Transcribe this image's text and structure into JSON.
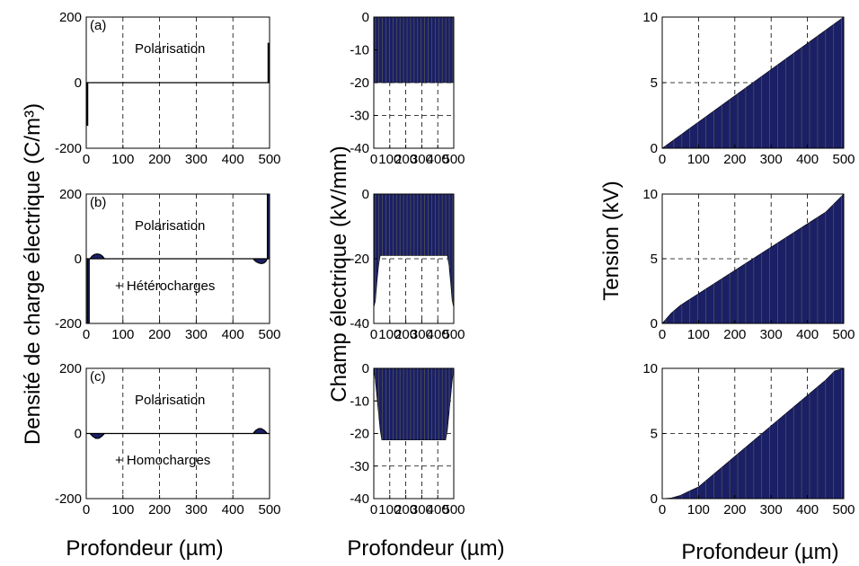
{
  "figure": {
    "ylabel_col1": "Densité de charge électrique (C/m³)",
    "ylabel_col2": "Champ électrique (kV/mm)",
    "ylabel_col3": "Tension (kV)",
    "xlabel": "Profondeur (µm)",
    "fill_color": "#1a1f66",
    "stripe_color": "#8a8a3a",
    "grid": "dashed"
  },
  "chart_data": [
    {
      "id": "a-charge",
      "type": "line",
      "panel_label": "(a)",
      "annotations": [
        "Polarisation"
      ],
      "xlim": [
        0,
        500
      ],
      "ylim": [
        -200,
        200
      ],
      "xticks": [
        0,
        100,
        200,
        300,
        400,
        500
      ],
      "yticks": [
        -200,
        0,
        200
      ],
      "x": [
        0,
        2,
        2,
        4,
        4,
        496,
        496,
        498,
        498,
        500
      ],
      "y": [
        0,
        0,
        -130,
        -130,
        0,
        0,
        120,
        120,
        0,
        0
      ]
    },
    {
      "id": "a-field",
      "type": "area",
      "xlim": [
        0,
        500
      ],
      "ylim": [
        -40,
        0
      ],
      "xticks": [
        0,
        100,
        200,
        300,
        400,
        500
      ],
      "yticks": [
        -40,
        -30,
        -20,
        -10,
        0
      ],
      "x": [
        0,
        500
      ],
      "y": [
        -20,
        -20
      ]
    },
    {
      "id": "a-voltage",
      "type": "area",
      "xlim": [
        0,
        500
      ],
      "ylim": [
        0,
        10
      ],
      "xticks": [
        0,
        100,
        200,
        300,
        400,
        500
      ],
      "yticks": [
        0,
        5,
        10
      ],
      "x": [
        0,
        500
      ],
      "y": [
        0,
        10
      ]
    },
    {
      "id": "b-charge",
      "type": "line",
      "panel_label": "(b)",
      "annotations": [
        "Polarisation",
        "+ Hétérocharges"
      ],
      "xlim": [
        0,
        500
      ],
      "ylim": [
        -200,
        200
      ],
      "xticks": [
        0,
        100,
        200,
        300,
        400,
        500
      ],
      "yticks": [
        -200,
        0,
        200
      ],
      "x": [
        0,
        3,
        3,
        8,
        8,
        10,
        16,
        22,
        30,
        38,
        44,
        50,
        455,
        462,
        470,
        478,
        485,
        490,
        494,
        494,
        500
      ],
      "y": [
        0,
        0,
        -200,
        -200,
        0,
        0,
        8,
        13,
        15,
        13,
        8,
        0,
        0,
        -8,
        -13,
        -15,
        -13,
        -8,
        0,
        200,
        200
      ]
    },
    {
      "id": "b-field",
      "type": "area",
      "xlim": [
        0,
        500
      ],
      "ylim": [
        -40,
        0
      ],
      "xticks": [
        0,
        100,
        200,
        300,
        400,
        500
      ],
      "yticks": [
        -40,
        -20,
        0
      ],
      "x": [
        0,
        10,
        20,
        30,
        40,
        50,
        450,
        460,
        470,
        480,
        490,
        500
      ],
      "y": [
        -35,
        -33,
        -27,
        -22,
        -19,
        -19,
        -19,
        -19,
        -22,
        -27,
        -33,
        -35
      ]
    },
    {
      "id": "b-voltage",
      "type": "area",
      "xlim": [
        0,
        500
      ],
      "ylim": [
        0,
        10
      ],
      "xticks": [
        0,
        100,
        200,
        300,
        400,
        500
      ],
      "yticks": [
        0,
        5,
        10
      ],
      "x": [
        0,
        25,
        50,
        100,
        450,
        475,
        500
      ],
      "y": [
        0,
        0.8,
        1.4,
        2.3,
        8.6,
        9.3,
        10
      ]
    },
    {
      "id": "c-charge",
      "type": "line",
      "panel_label": "(c)",
      "annotations": [
        "Polarisation",
        "+ Homocharges"
      ],
      "xlim": [
        0,
        500
      ],
      "ylim": [
        -200,
        200
      ],
      "xticks": [
        0,
        100,
        200,
        300,
        400,
        500
      ],
      "yticks": [
        -200,
        0,
        200
      ],
      "x": [
        0,
        10,
        18,
        26,
        34,
        42,
        50,
        455,
        462,
        470,
        478,
        486,
        494,
        500
      ],
      "y": [
        0,
        0,
        -9,
        -15,
        -15,
        -9,
        0,
        0,
        9,
        15,
        15,
        9,
        0,
        0
      ]
    },
    {
      "id": "c-field",
      "type": "area",
      "xlim": [
        0,
        500
      ],
      "ylim": [
        -40,
        0
      ],
      "xticks": [
        0,
        100,
        200,
        300,
        400,
        500
      ],
      "yticks": [
        -40,
        -30,
        -20,
        -10,
        0
      ],
      "x": [
        0,
        10,
        20,
        30,
        40,
        50,
        450,
        460,
        470,
        480,
        490,
        500
      ],
      "y": [
        0,
        -4,
        -9,
        -14,
        -19,
        -22,
        -22,
        -19,
        -14,
        -9,
        -4,
        0
      ]
    },
    {
      "id": "c-voltage",
      "type": "area",
      "xlim": [
        0,
        500
      ],
      "ylim": [
        0,
        10
      ],
      "xticks": [
        0,
        100,
        200,
        300,
        400,
        500
      ],
      "yticks": [
        0,
        5,
        10
      ],
      "x": [
        0,
        25,
        50,
        100,
        450,
        475,
        500
      ],
      "y": [
        0,
        0.05,
        0.25,
        0.9,
        9.1,
        9.8,
        10
      ]
    }
  ]
}
